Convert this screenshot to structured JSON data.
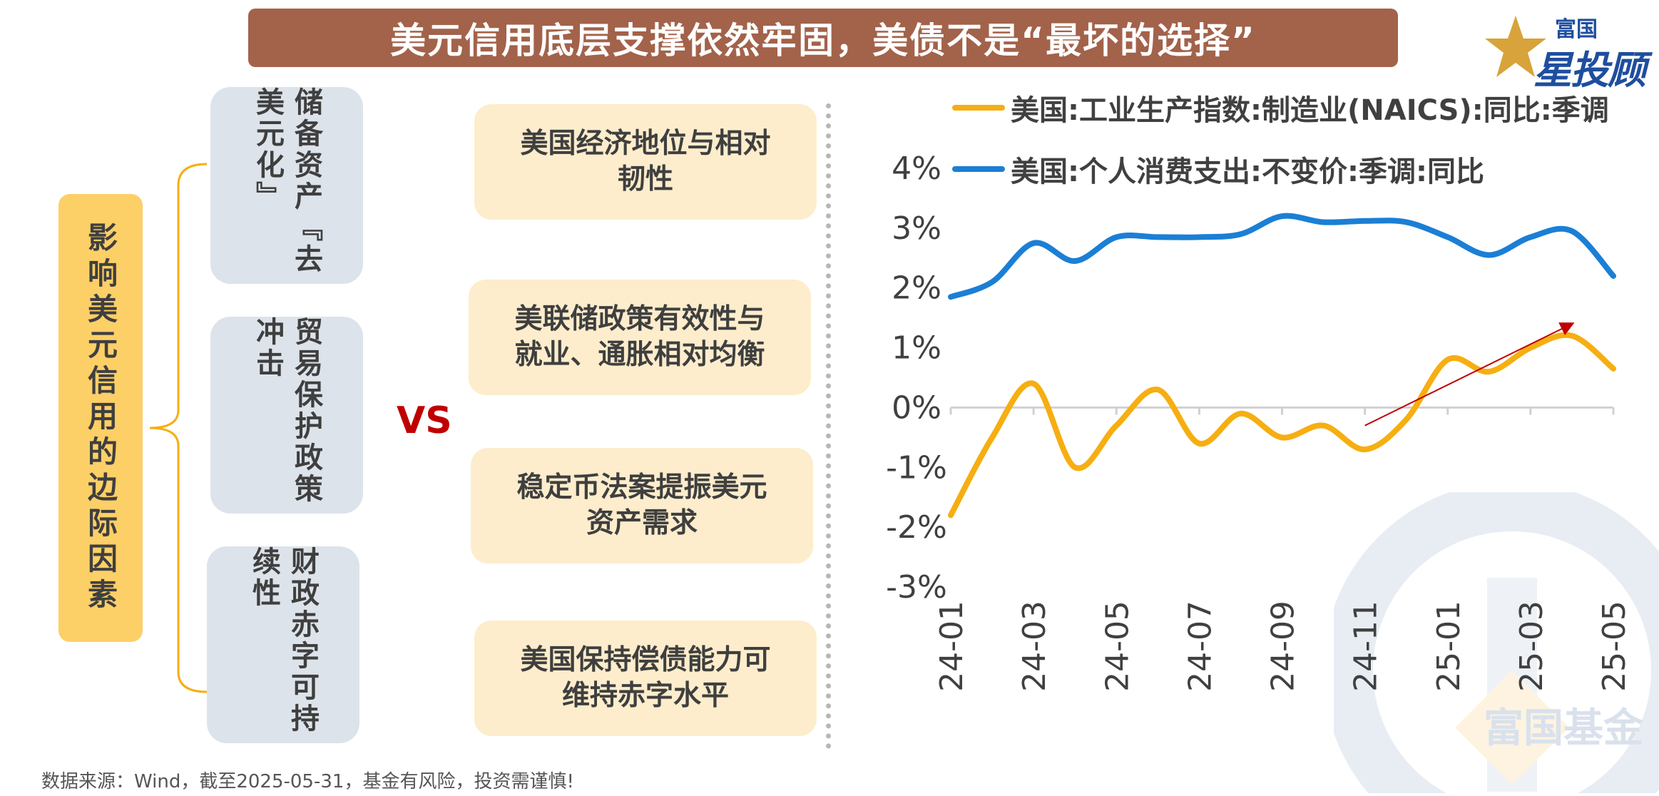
{
  "title": "美元信用底层支撑依然牢固，美债不是“最坏的选择”",
  "logo": {
    "line1": "富国",
    "line2": "星投顾"
  },
  "factor_label": "影响美元信用的边际因素",
  "factors": [
    {
      "col1": "储备资产",
      "col2": "『去美元化』"
    },
    {
      "col1": "贸易保护政",
      "col2": "策冲击"
    },
    {
      "col1": "财政赤字可",
      "col2": "持续性"
    }
  ],
  "vs_label": "VS",
  "supports": [
    {
      "line1": "美国经济地位与相对",
      "line2": "韧性"
    },
    {
      "line1": "美联储政策有效性与",
      "line2": "就业、通胀相对均衡"
    },
    {
      "line1": "稳定币法案提振美元",
      "line2": "资产需求"
    },
    {
      "line1": "美国保持偿债能力可",
      "line2": "维持赤字水平"
    }
  ],
  "footer": "数据来源：Wind，截至2025-05-31，基金有风险，投资需谨慎!",
  "watermark_text": "富国基金",
  "colors": {
    "title_bg": "#a3624a",
    "factor_box": "#fdcf67",
    "factor_item_bg": "#dde3ea",
    "support_bg": "#fdedcc",
    "vs": "#c00000",
    "series_industrial": "#f6ae11",
    "series_pce": "#1b7fd5",
    "arrow": "#c00000"
  },
  "chart_data": {
    "type": "line",
    "x_ticks": [
      "24-01",
      "24-03",
      "24-05",
      "24-07",
      "24-09",
      "24-11",
      "25-01",
      "25-03",
      "25-05"
    ],
    "x": [
      "24-01",
      "24-02",
      "24-03",
      "24-04",
      "24-05",
      "24-06",
      "24-07",
      "24-08",
      "24-09",
      "24-10",
      "24-11",
      "24-12",
      "25-01",
      "25-02",
      "25-03",
      "25-04",
      "25-05"
    ],
    "y_ticks": [
      "4%",
      "3%",
      "2%",
      "1%",
      "0%",
      "-1%",
      "-2%",
      "-3%"
    ],
    "ylim": [
      -3,
      4
    ],
    "series": [
      {
        "name": "美国:工业生产指数:制造业(NAICS):同比:季调",
        "color": "#f6ae11",
        "values": [
          -1.8,
          -0.5,
          0.4,
          -1.0,
          -0.3,
          0.3,
          -0.6,
          -0.1,
          -0.5,
          -0.3,
          -0.7,
          -0.2,
          0.8,
          0.6,
          1.0,
          1.2,
          0.65
        ]
      },
      {
        "name": "美国:个人消费支出:不变价:季调:同比",
        "color": "#1b7fd5",
        "values": [
          1.85,
          2.1,
          2.75,
          2.45,
          2.85,
          2.85,
          2.85,
          2.9,
          3.2,
          3.1,
          3.12,
          3.1,
          2.85,
          2.55,
          2.85,
          2.95,
          2.2
        ]
      }
    ],
    "annotation": {
      "type": "arrow",
      "from": [
        "24-11",
        -0.3
      ],
      "to": [
        "25-04",
        1.4
      ]
    }
  }
}
